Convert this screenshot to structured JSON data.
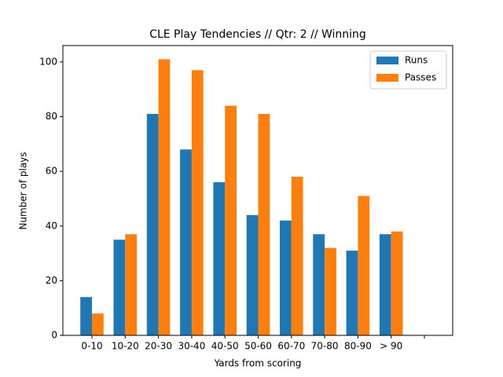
{
  "chart_data": {
    "type": "bar",
    "title": "CLE Play Tendencies // Qtr: 2 // Winning",
    "x_label": "Yards from scoring",
    "y_label": "Number of plays",
    "categories": [
      "0-10",
      "10-20",
      "20-30",
      "30-40",
      "40-50",
      "50-60",
      "60-70",
      "70-80",
      "80-90",
      "> 90",
      null
    ],
    "series": [
      {
        "name": "Runs",
        "color": "#1f77b4",
        "values": [
          14,
          35,
          81,
          68,
          56,
          44,
          42,
          37,
          31,
          37,
          null
        ]
      },
      {
        "name": "Passes",
        "color": "#ff7f0e",
        "values": [
          8,
          37,
          101,
          97,
          84,
          81,
          58,
          32,
          51,
          38,
          null
        ]
      }
    ],
    "ylim": [
      0,
      106
    ],
    "yticks": [
      0,
      20,
      40,
      60,
      80,
      100
    ],
    "legend": "upper right"
  }
}
